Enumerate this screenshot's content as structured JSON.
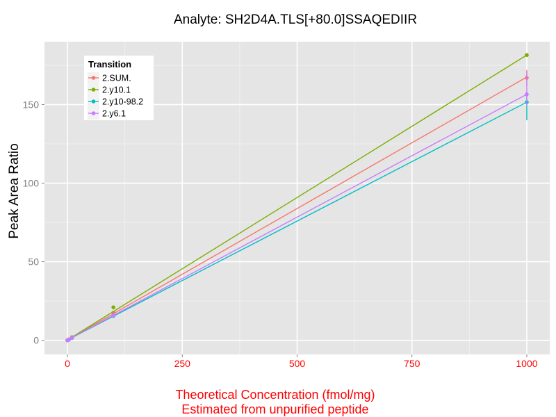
{
  "chart_data": {
    "type": "line",
    "title": "Analyte: SH2D4A.TLS[+80.0]SSAQEDIIR",
    "ylabel": "Peak Area Ratio",
    "xlabel_lines": [
      "Theoretical Concentration (fmol/mg)",
      "Estimated from unpurified peptide"
    ],
    "xlim": [
      -50,
      1050
    ],
    "ylim": [
      -9,
      190
    ],
    "x_ticks": [
      0,
      250,
      500,
      750,
      1000
    ],
    "x_tick_labels": [
      "0",
      "250",
      "500",
      "750",
      "1000"
    ],
    "y_ticks": [
      0,
      50,
      100,
      150
    ],
    "y_tick_labels": [
      "0",
      "50",
      "100",
      "150"
    ],
    "grid": true,
    "legend": {
      "title": "Transition",
      "placement": "top-left"
    },
    "x": [
      0,
      1,
      3,
      10,
      100,
      1000
    ],
    "series": [
      {
        "name": "2.SUM.",
        "color": "#F8766D",
        "points": [
          {
            "x": 0,
            "y": 0
          },
          {
            "x": 1,
            "y": 0.2
          },
          {
            "x": 3,
            "y": 0.5
          },
          {
            "x": 10,
            "y": 1.7
          },
          {
            "x": 100,
            "y": 17.5
          },
          {
            "x": 1000,
            "y": 167
          }
        ],
        "fit": [
          [
            0,
            0.2
          ],
          [
            1000,
            167.5
          ]
        ],
        "error_bars": [
          {
            "x": 1000,
            "low": 162,
            "high": 172
          }
        ]
      },
      {
        "name": "2.y10.1",
        "color": "#7CAE00",
        "points": [
          {
            "x": 0,
            "y": 0
          },
          {
            "x": 1,
            "y": 0.2
          },
          {
            "x": 3,
            "y": 0.6
          },
          {
            "x": 10,
            "y": 2
          },
          {
            "x": 100,
            "y": 21
          },
          {
            "x": 1000,
            "y": 181.5
          }
        ],
        "fit": [
          [
            0,
            0.2
          ],
          [
            1000,
            181.5
          ]
        ],
        "error_bars": []
      },
      {
        "name": "2.y10-98.2",
        "color": "#00BFC4",
        "points": [
          {
            "x": 0,
            "y": 0
          },
          {
            "x": 1,
            "y": 0.1
          },
          {
            "x": 3,
            "y": 0.4
          },
          {
            "x": 10,
            "y": 1.5
          },
          {
            "x": 100,
            "y": 15.5
          },
          {
            "x": 1000,
            "y": 151.5
          }
        ],
        "fit": [
          [
            0,
            0.2
          ],
          [
            1000,
            151.5
          ]
        ],
        "error_bars": [
          {
            "x": 1000,
            "low": 140,
            "high": 158
          }
        ]
      },
      {
        "name": "2.y6.1",
        "color": "#C77CFF",
        "points": [
          {
            "x": 0,
            "y": 0
          },
          {
            "x": 1,
            "y": 0.2
          },
          {
            "x": 3,
            "y": 0.5
          },
          {
            "x": 10,
            "y": 1.6
          },
          {
            "x": 100,
            "y": 15.8
          },
          {
            "x": 1000,
            "y": 156.5
          }
        ],
        "fit": [
          [
            0,
            0.2
          ],
          [
            1000,
            156.5
          ]
        ],
        "error_bars": [
          {
            "x": 1000,
            "low": 149,
            "high": 171
          }
        ]
      }
    ]
  }
}
